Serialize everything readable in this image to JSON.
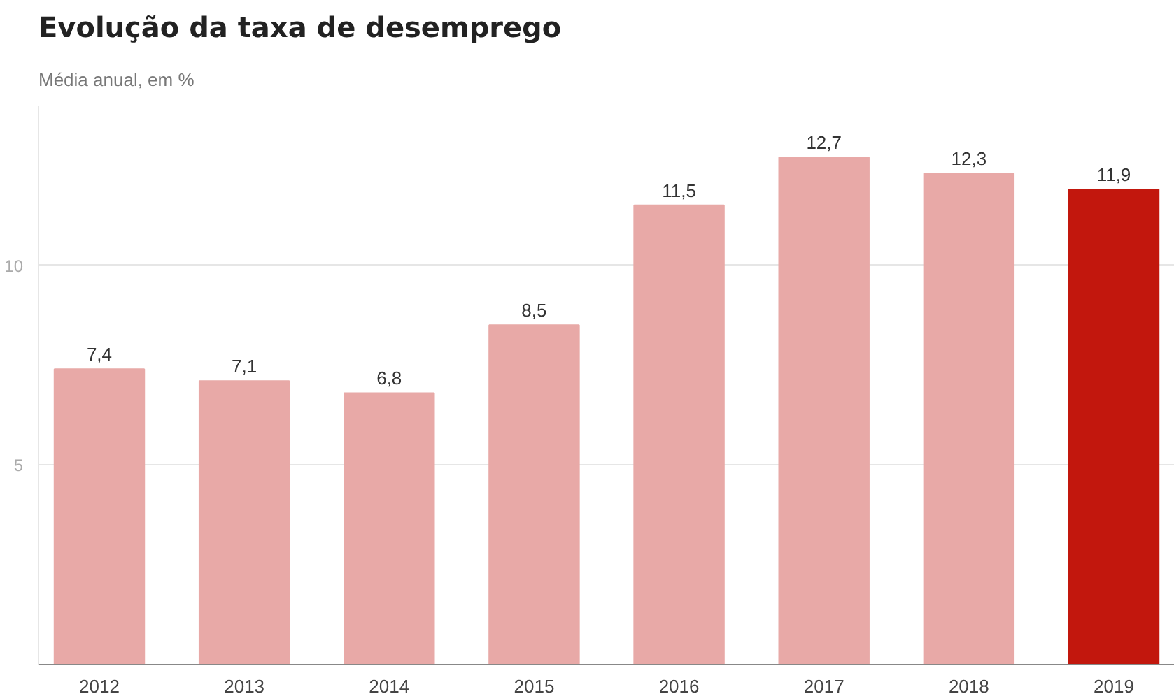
{
  "chart_data": {
    "type": "bar",
    "title": "Evolução da taxa de desemprego",
    "subtitle": "Média anual, em %",
    "categories": [
      "2012",
      "2013",
      "2014",
      "2015",
      "2016",
      "2017",
      "2018",
      "2019"
    ],
    "values": [
      7.4,
      7.1,
      6.8,
      8.5,
      11.5,
      12.7,
      12.3,
      11.9
    ],
    "colors": [
      "#e8a9a7",
      "#e8a9a7",
      "#e8a9a7",
      "#e8a9a7",
      "#e8a9a7",
      "#e8a9a7",
      "#e8a9a7",
      "#c2170d"
    ],
    "value_labels": [
      "7,4",
      "7,1",
      "6,8",
      "8,5",
      "11,5",
      "12,7",
      "12,3",
      "11,9"
    ],
    "ylim": [
      0,
      14
    ],
    "yticks": [
      {
        "value": 0,
        "label": null
      },
      5,
      10
    ],
    "grid": "y"
  }
}
